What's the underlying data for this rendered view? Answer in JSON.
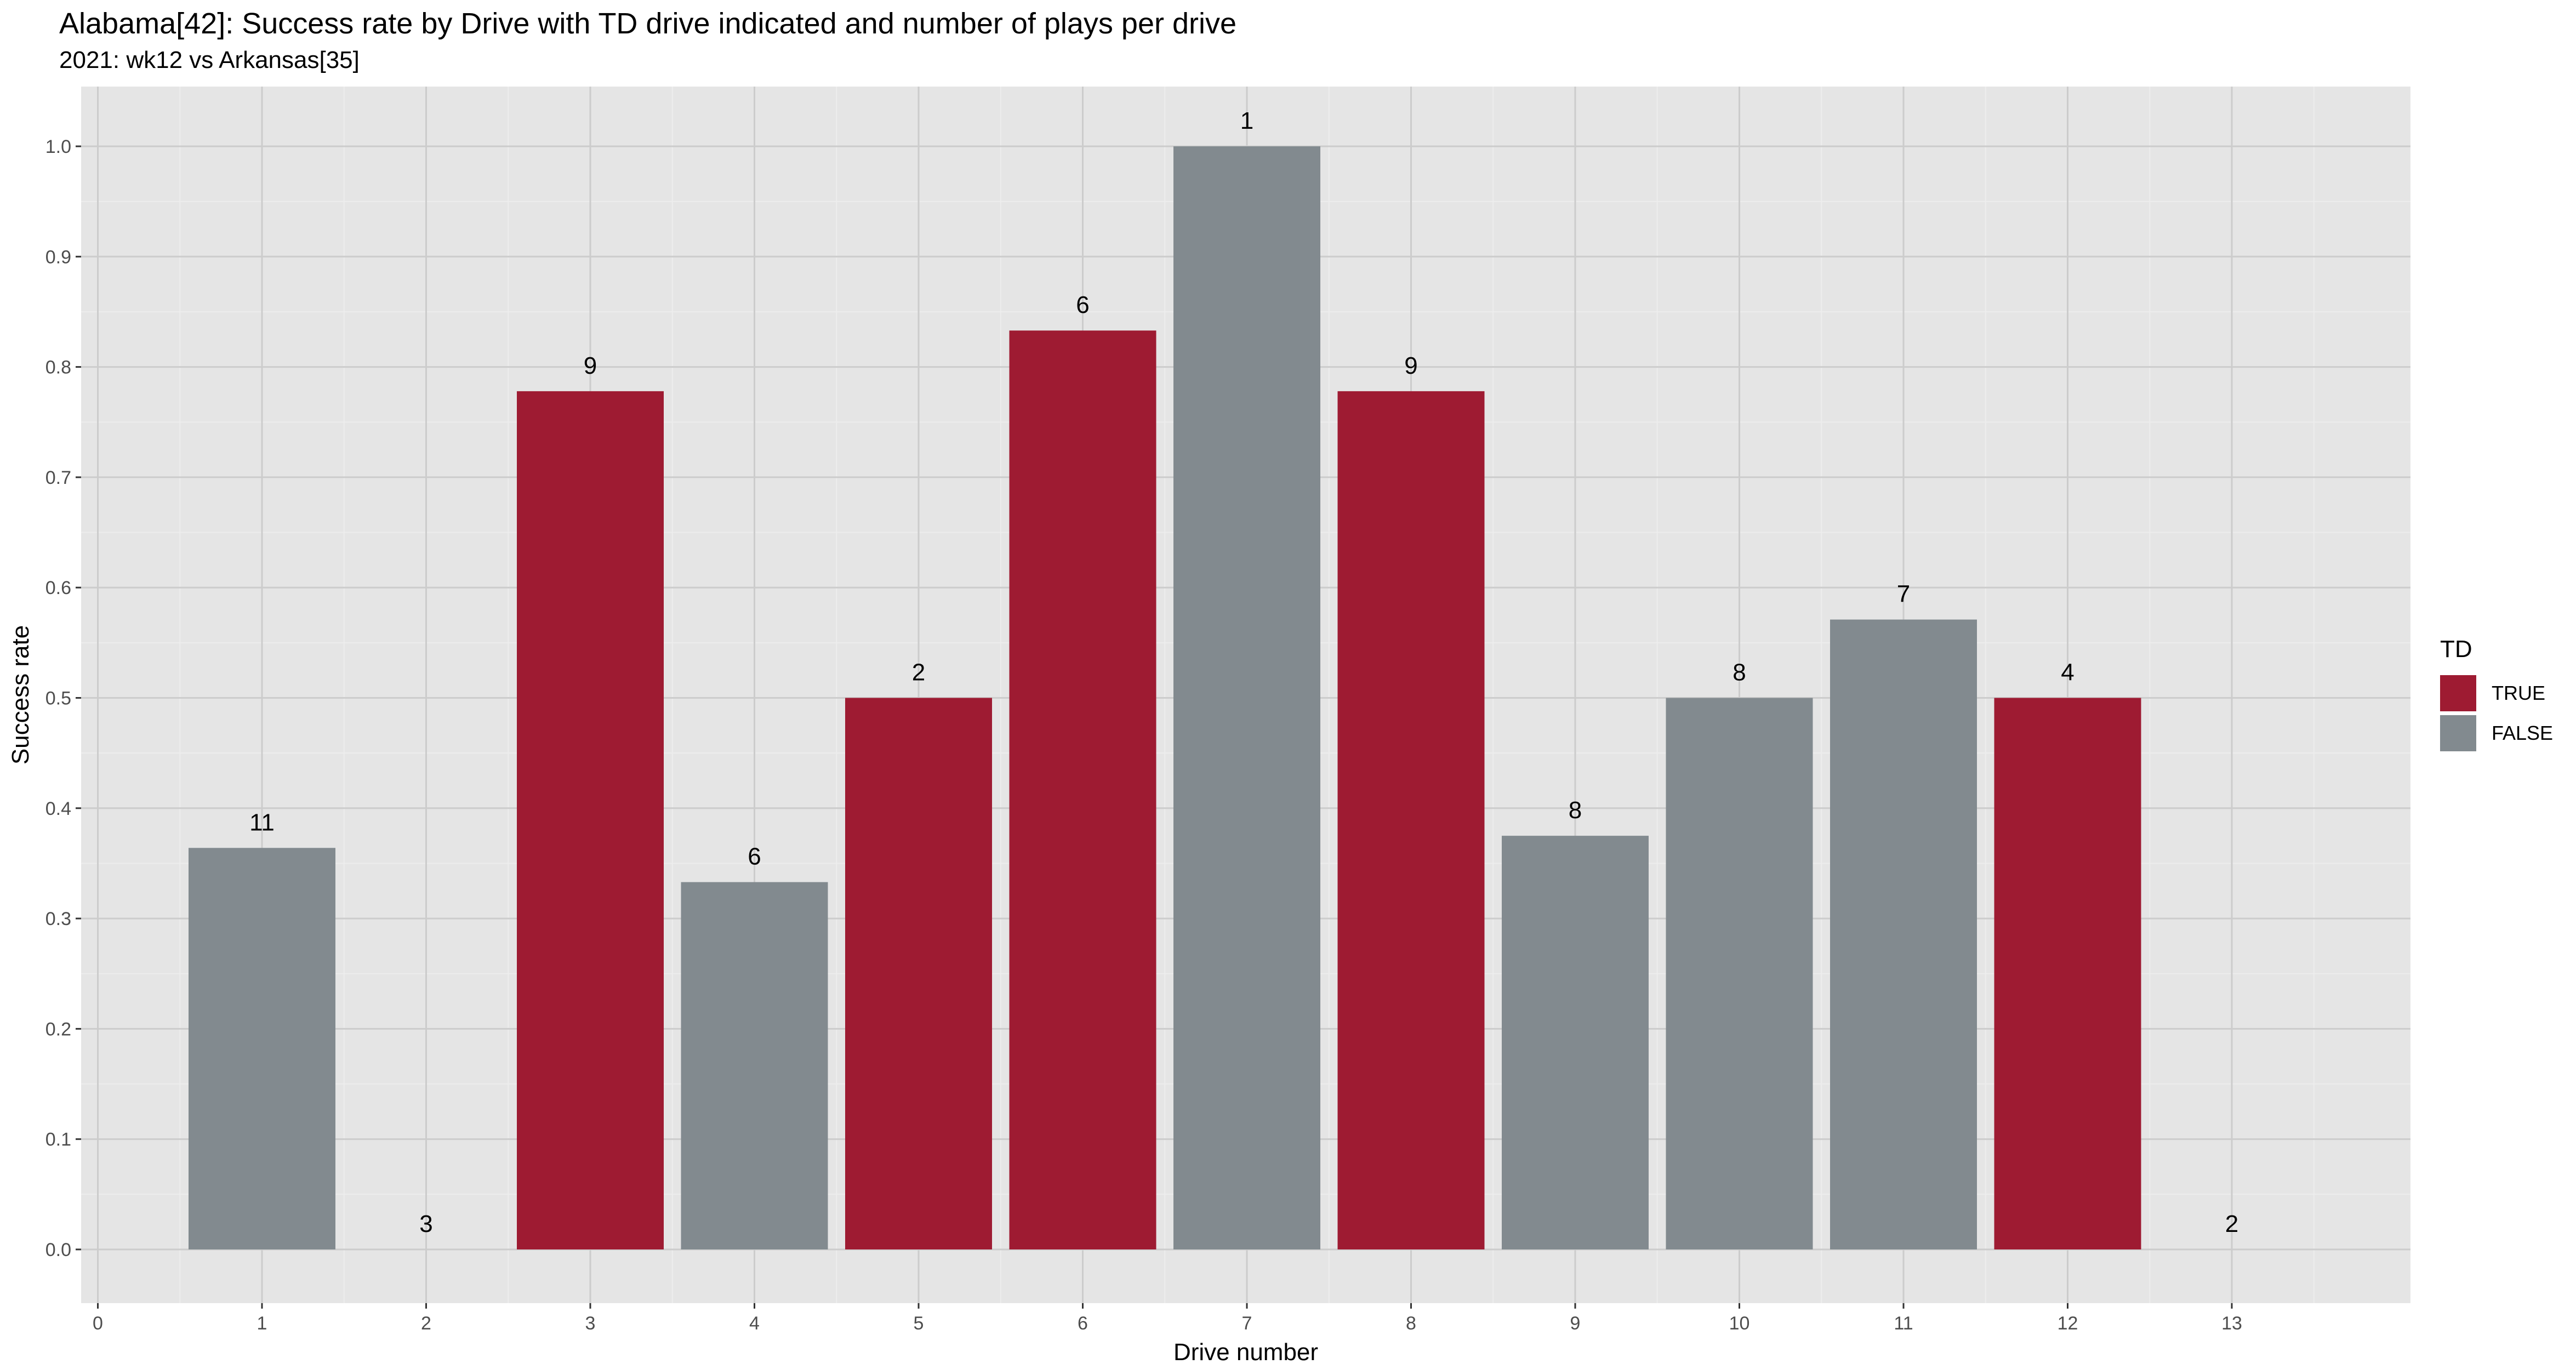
{
  "chart_data": {
    "type": "bar",
    "title": "Alabama[42]: Success rate by Drive with TD drive indicated and number of plays per drive",
    "subtitle": "2021: wk12 vs Arkansas[35]",
    "xlabel": "Drive number",
    "ylabel": "Success rate",
    "xlim": [
      0,
      14
    ],
    "x_ticks": [
      0,
      1,
      2,
      3,
      4,
      5,
      6,
      7,
      8,
      9,
      10,
      11,
      12,
      13
    ],
    "ylim": [
      0,
      1.0
    ],
    "y_ticks": [
      "0.0",
      "0.1",
      "0.2",
      "0.3",
      "0.4",
      "0.5",
      "0.6",
      "0.7",
      "0.8",
      "0.9",
      "1.0"
    ],
    "grid": true,
    "legend_position": "right",
    "legend_title": "TD",
    "legend": [
      {
        "label": "TRUE",
        "color": "#9E1B32"
      },
      {
        "label": "FALSE",
        "color": "#828A8F"
      }
    ],
    "bars": [
      {
        "drive": 1,
        "success_rate": 0.364,
        "td": false,
        "plays": "11"
      },
      {
        "drive": 2,
        "success_rate": 0.0,
        "td": false,
        "plays": "3"
      },
      {
        "drive": 3,
        "success_rate": 0.778,
        "td": true,
        "plays": "9"
      },
      {
        "drive": 4,
        "success_rate": 0.333,
        "td": false,
        "plays": "6"
      },
      {
        "drive": 5,
        "success_rate": 0.5,
        "td": true,
        "plays": "2"
      },
      {
        "drive": 6,
        "success_rate": 0.833,
        "td": true,
        "plays": "6"
      },
      {
        "drive": 7,
        "success_rate": 1.0,
        "td": false,
        "plays": "1"
      },
      {
        "drive": 8,
        "success_rate": 0.778,
        "td": true,
        "plays": "9"
      },
      {
        "drive": 9,
        "success_rate": 0.375,
        "td": false,
        "plays": "8"
      },
      {
        "drive": 10,
        "success_rate": 0.5,
        "td": false,
        "plays": "8"
      },
      {
        "drive": 11,
        "success_rate": 0.571,
        "td": false,
        "plays": "7"
      },
      {
        "drive": 12,
        "success_rate": 0.5,
        "td": true,
        "plays": "4"
      },
      {
        "drive": 13,
        "success_rate": 0.0,
        "td": false,
        "plays": "2"
      }
    ],
    "colors": {
      "panel_background": "#E5E5E5",
      "grid": "#CCCCCC",
      "td_true": "#9E1B32",
      "td_false": "#828A8F"
    }
  }
}
